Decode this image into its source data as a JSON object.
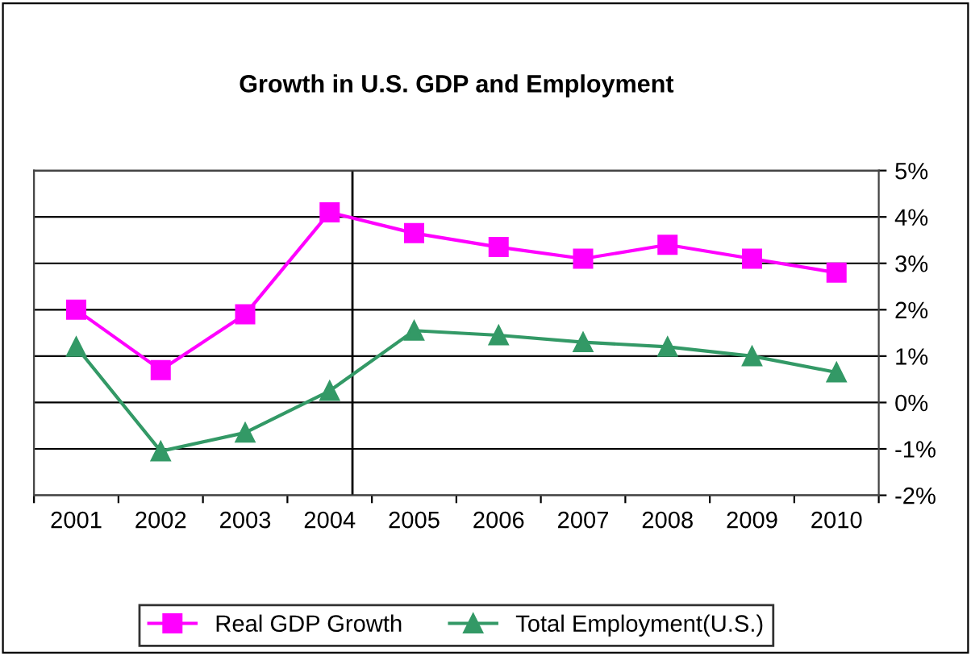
{
  "chart_data": {
    "type": "line",
    "title": "Growth in U.S. GDP and Employment",
    "x": [
      2001,
      2002,
      2003,
      2004,
      2005,
      2006,
      2007,
      2008,
      2009,
      2010
    ],
    "xlim": [
      2000.5,
      2010.5
    ],
    "xticks": [
      {
        "value": 2001,
        "label": "2001"
      },
      {
        "value": 2002,
        "label": "2002"
      },
      {
        "value": 2003,
        "label": "2003"
      },
      {
        "value": 2004,
        "label": "2004"
      },
      {
        "value": 2005,
        "label": "2005"
      },
      {
        "value": 2006,
        "label": "2006"
      },
      {
        "value": 2007,
        "label": "2007"
      },
      {
        "value": 2008,
        "label": "2008"
      },
      {
        "value": 2009,
        "label": "2009"
      },
      {
        "value": 2010,
        "label": "2010"
      },
      {
        "value": 2000.5,
        "label": null
      },
      {
        "value": 2001.5,
        "label": null
      },
      {
        "value": 2002.5,
        "label": null
      },
      {
        "value": 2003.5,
        "label": null
      },
      {
        "value": 2004.5,
        "label": null
      },
      {
        "value": 2005.5,
        "label": null
      },
      {
        "value": 2006.5,
        "label": null
      },
      {
        "value": 2007.5,
        "label": null
      },
      {
        "value": 2008.5,
        "label": null
      },
      {
        "value": 2009.5,
        "label": null
      },
      {
        "value": 2010.5,
        "label": null
      }
    ],
    "ylim": [
      -2,
      5
    ],
    "yticks": [
      {
        "value": -2,
        "label": "-2%"
      },
      {
        "value": -1,
        "label": "-1%"
      },
      {
        "value": 0,
        "label": "0%"
      },
      {
        "value": 1,
        "label": "1%"
      },
      {
        "value": 2,
        "label": "2%"
      },
      {
        "value": 3,
        "label": "3%"
      },
      {
        "value": 4,
        "label": "4%"
      },
      {
        "value": 5,
        "label": "5%"
      }
    ],
    "grid": "y",
    "legend": "bottom",
    "ref_lines": [
      {
        "axis": "x",
        "value": 2004.27,
        "color": "#000000"
      }
    ],
    "series": [
      {
        "name": "Real GDP Growth",
        "color": "#ff00ff",
        "marker": "square",
        "values": [
          2.0,
          0.7,
          1.9,
          4.1,
          3.65,
          3.35,
          3.1,
          3.4,
          3.1,
          2.8
        ]
      },
      {
        "name": "Total Employment(U.S.)",
        "color": "#339966",
        "marker": "triangle",
        "values": [
          1.2,
          -1.05,
          -0.65,
          0.25,
          1.55,
          1.45,
          1.3,
          1.2,
          1.0,
          0.65
        ]
      }
    ]
  }
}
